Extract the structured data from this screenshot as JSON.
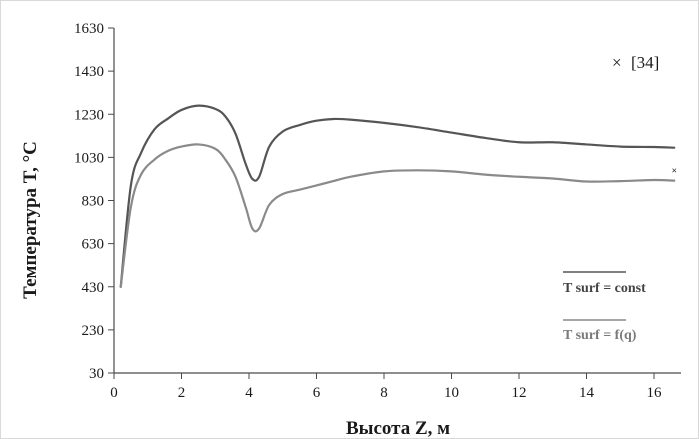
{
  "chart_data": {
    "type": "line",
    "ylabel": "Температура T, °C",
    "xlabel": "Высота Z, м",
    "xlim": [
      0,
      16.8
    ],
    "ylim": [
      30,
      1630
    ],
    "xticks": [
      0,
      2,
      4,
      6,
      8,
      10,
      12,
      14,
      16
    ],
    "yticks": [
      30,
      230,
      430,
      630,
      830,
      1030,
      1230,
      1430,
      1630
    ],
    "grid": false,
    "legend_position": "bottom-right",
    "series": [
      {
        "name": "T surf = const",
        "color": "#555555",
        "x": [
          0.2,
          0.5,
          0.8,
          1.2,
          1.6,
          2.0,
          2.5,
          3.0,
          3.3,
          3.6,
          3.9,
          4.1,
          4.3,
          4.6,
          5.0,
          5.5,
          6.0,
          6.5,
          7.0,
          8.0,
          9.0,
          10.0,
          11.0,
          12.0,
          13.0,
          14.0,
          15.0,
          16.0,
          16.6
        ],
        "y": [
          430,
          900,
          1050,
          1160,
          1210,
          1250,
          1270,
          1255,
          1220,
          1140,
          1000,
          930,
          940,
          1080,
          1150,
          1180,
          1200,
          1208,
          1205,
          1190,
          1170,
          1145,
          1120,
          1100,
          1100,
          1090,
          1080,
          1078,
          1075
        ]
      },
      {
        "name": "T surf = f(q)",
        "color": "#8a8a8a",
        "x": [
          0.2,
          0.5,
          0.8,
          1.2,
          1.6,
          2.0,
          2.5,
          3.0,
          3.3,
          3.6,
          3.9,
          4.1,
          4.3,
          4.6,
          5.0,
          5.5,
          6.0,
          6.5,
          7.0,
          8.0,
          9.0,
          10.0,
          11.0,
          12.0,
          13.0,
          14.0,
          15.0,
          16.0,
          16.6
        ],
        "y": [
          430,
          800,
          950,
          1020,
          1060,
          1080,
          1090,
          1070,
          1020,
          940,
          800,
          700,
          700,
          810,
          860,
          880,
          900,
          920,
          940,
          965,
          970,
          965,
          950,
          940,
          932,
          918,
          920,
          925,
          922
        ]
      },
      {
        "name": "[34]",
        "color": "#222222",
        "marker": "x",
        "x": [
          16.6
        ],
        "y": [
          970
        ]
      }
    ]
  }
}
